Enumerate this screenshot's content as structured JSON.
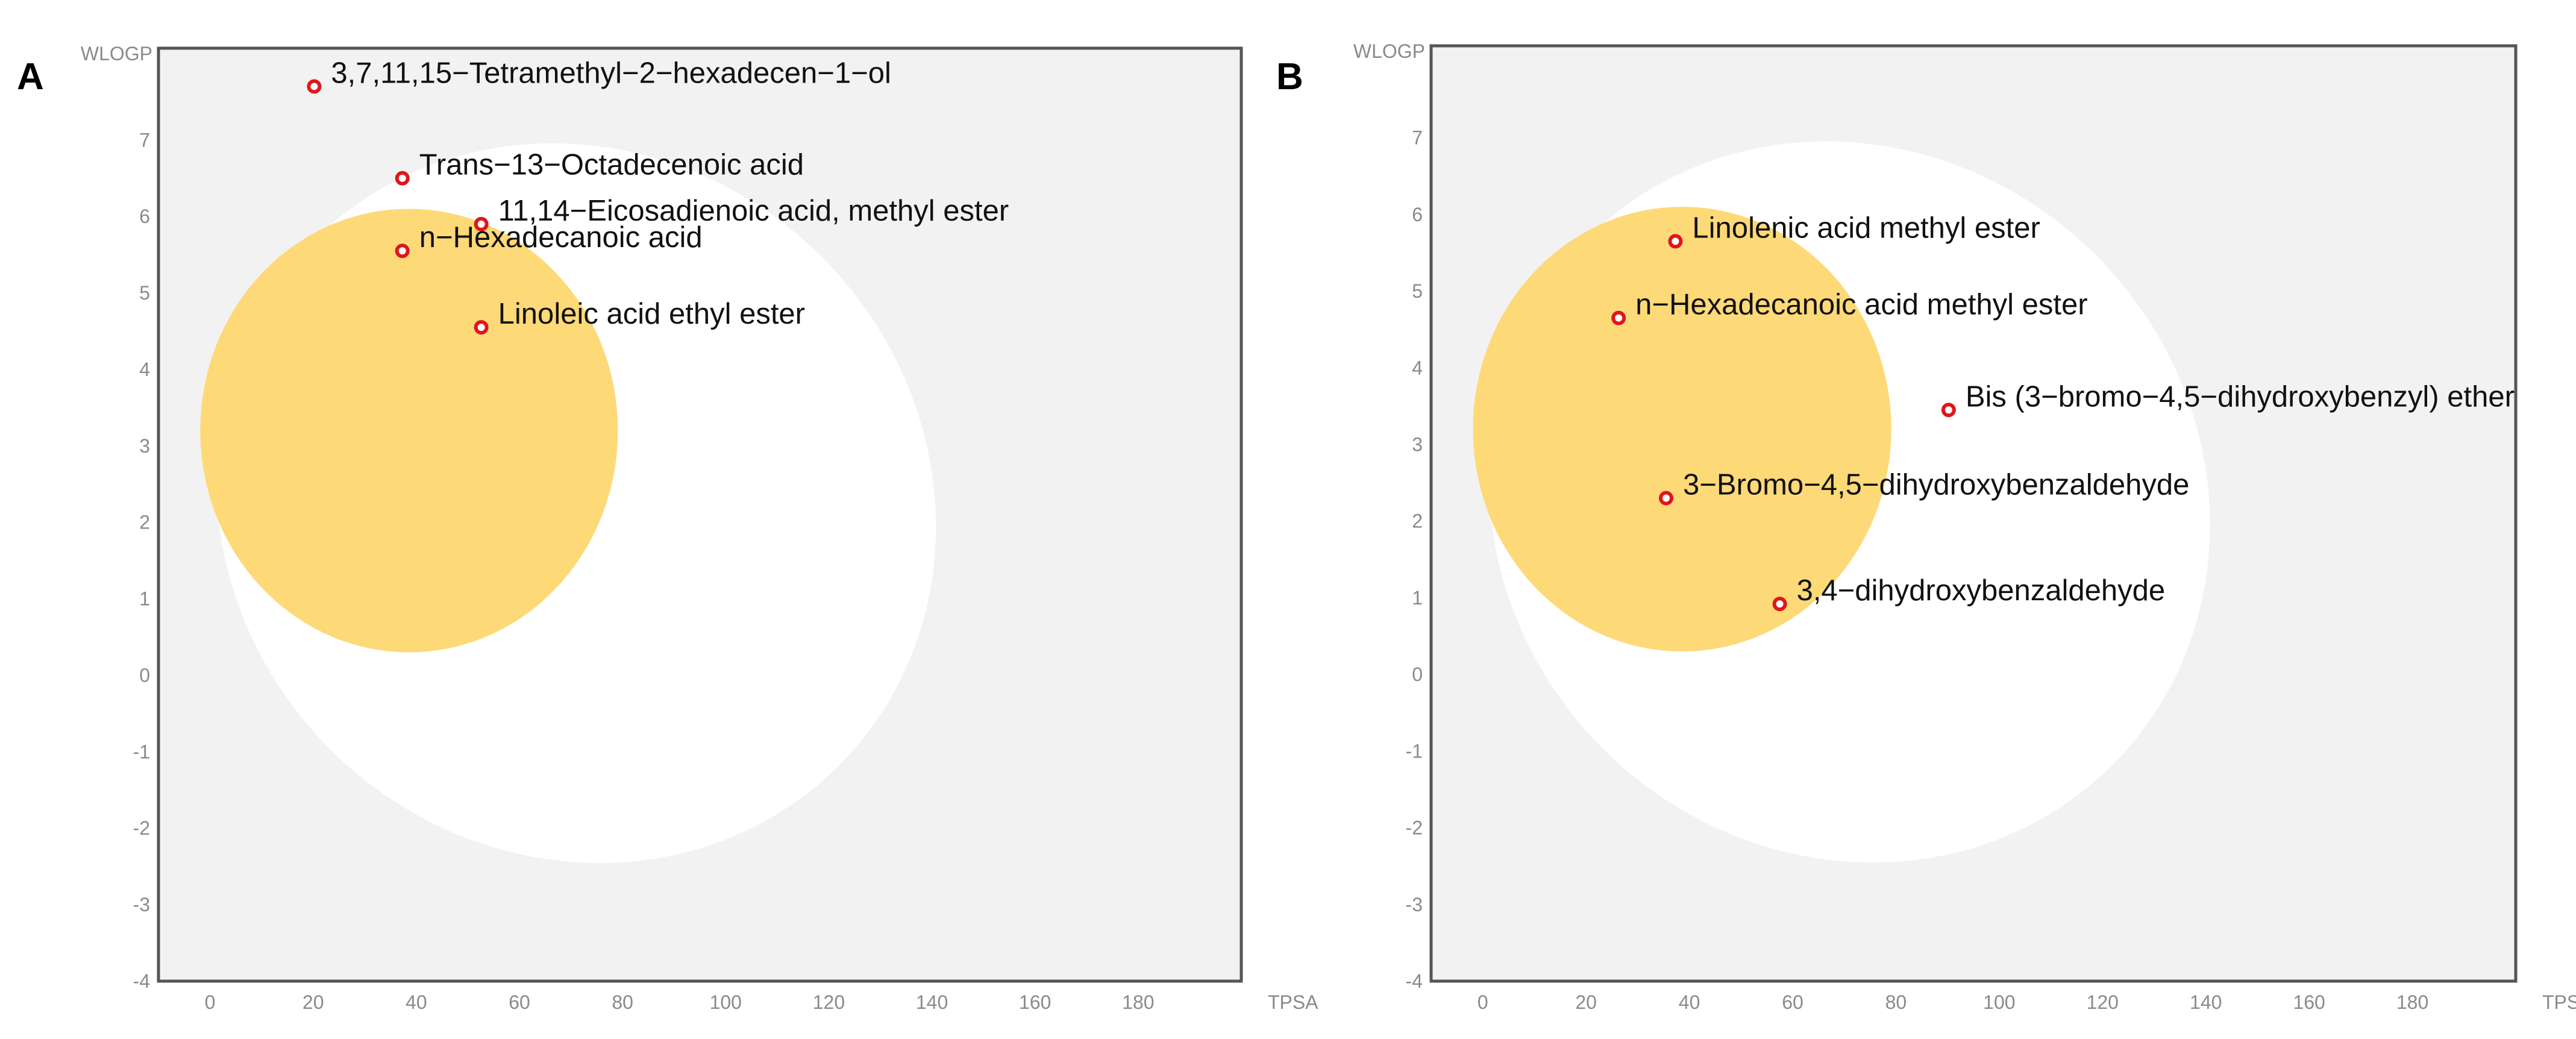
{
  "colors": {
    "plot_bg": "#f2f2f2",
    "white_region": "#ffffff",
    "yolk_region": "#fdd978",
    "point_stroke": "#e0161c",
    "frame": "#555555"
  },
  "chart_data": [
    {
      "type": "scatter",
      "panel": "A",
      "xlabel": "TPSA",
      "ylabel": "WLOGP",
      "xlim": [
        -10,
        200
      ],
      "ylim": [
        -4,
        8.2
      ],
      "xticks": [
        0,
        20,
        40,
        60,
        80,
        100,
        120,
        140,
        160,
        180
      ],
      "yticks": [
        -4,
        -3,
        -2,
        -1,
        0,
        1,
        2,
        3,
        4,
        5,
        6,
        7
      ],
      "grid": false,
      "regions": [
        {
          "name": "white",
          "shape": "ellipse",
          "cx": 71,
          "cy": 2.25,
          "rx": 72,
          "ry": 4.55,
          "rotation_deg": 45
        },
        {
          "name": "yolk",
          "shape": "ellipse",
          "cx": 38.6,
          "cy": 3.2,
          "rx": 40.5,
          "ry": 2.9,
          "rotation_deg": 0
        }
      ],
      "points": [
        {
          "x": 20.2,
          "y": 7.7,
          "label": "3,7,11,15−Tetramethyl−2−hexadecen−1−ol"
        },
        {
          "x": 37.3,
          "y": 6.5,
          "label": "Trans−13−Octadecenoic acid"
        },
        {
          "x": 52.6,
          "y": 5.9,
          "label": "11,14−Eicosadienoic acid, methyl ester"
        },
        {
          "x": 37.3,
          "y": 5.55,
          "label": "n−Hexadecanoic acid"
        },
        {
          "x": 52.6,
          "y": 4.55,
          "label": "Linoleic acid ethyl ester"
        }
      ]
    },
    {
      "type": "scatter",
      "panel": "B",
      "xlabel": "TPSA",
      "ylabel": "WLOGP",
      "xlim": [
        -10,
        200
      ],
      "ylim": [
        -4,
        8.2
      ],
      "xticks": [
        0,
        20,
        40,
        60,
        80,
        100,
        120,
        140,
        160,
        180
      ],
      "yticks": [
        -4,
        -3,
        -2,
        -1,
        0,
        1,
        2,
        3,
        4,
        5,
        6,
        7
      ],
      "grid": false,
      "regions": [
        {
          "name": "white",
          "shape": "ellipse",
          "cx": 71,
          "cy": 2.25,
          "rx": 72,
          "ry": 4.55,
          "rotation_deg": 45
        },
        {
          "name": "yolk",
          "shape": "ellipse",
          "cx": 38.6,
          "cy": 3.2,
          "rx": 40.5,
          "ry": 2.9,
          "rotation_deg": 0
        }
      ],
      "points": [
        {
          "x": 37.3,
          "y": 5.65,
          "label": "Linolenic acid methyl ester"
        },
        {
          "x": 26.3,
          "y": 4.65,
          "label": "n−Hexadecanoic acid methyl ester"
        },
        {
          "x": 90.2,
          "y": 3.45,
          "label": "Bis (3−bromo−4,5−dihydroxybenzyl) ether"
        },
        {
          "x": 35.5,
          "y": 2.3,
          "label": "3−Bromo−4,5−dihydroxybenzaldehyde"
        },
        {
          "x": 57.5,
          "y": 0.92,
          "label": "3,4−dihydroxybenzaldehyde"
        }
      ]
    }
  ]
}
